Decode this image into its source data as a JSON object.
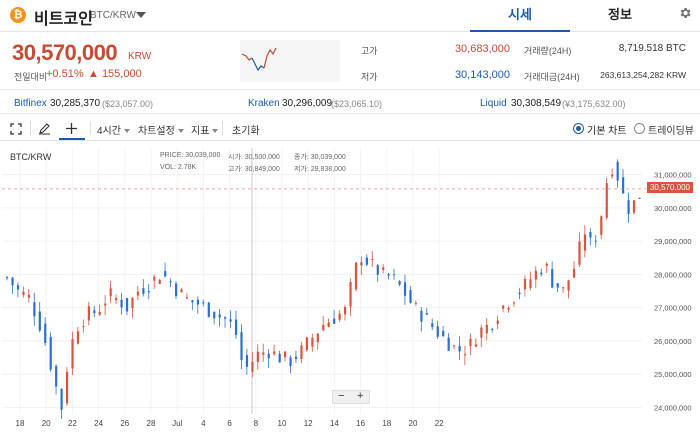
{
  "header": {
    "coin_logo": "₿",
    "coin_name": "비트코인",
    "pair": "BTC/KRW",
    "tabs": [
      "시세",
      "정보"
    ],
    "settings_icon": "gear-icon"
  },
  "price": {
    "current": "30,570,000",
    "unit": "KRW",
    "change_label": "전일대비",
    "change_pct": "+0.51%",
    "change_abs": "▲ 155,000",
    "color_up": "#c84a31",
    "color_down": "#1a5bb0"
  },
  "stats": {
    "high_label": "고가",
    "high": "30,683,000",
    "low_label": "저가",
    "low": "30,143,000",
    "volume_label": "거래량(24H)",
    "volume": "8,719.518 BTC",
    "amount_label": "거래대금(24H)",
    "amount": "263,613,254,282 KRW"
  },
  "exchanges": [
    {
      "name": "Bitfinex",
      "price": "30,285,370",
      "usd": "($23,057.00)"
    },
    {
      "name": "Kraken",
      "price": "30,296,009",
      "usd": "($23,065.10)"
    },
    {
      "name": "Liquid",
      "price": "30,308,549",
      "usd": "(¥3,175,632.00)"
    }
  ],
  "toolbar": {
    "fullscreen_icon": "expand-icon",
    "draw_icon": "pencil-icon",
    "crosshair_icon": "plus-icon",
    "interval": "4시간",
    "chart_settings": "차트설정",
    "indicators": "지표",
    "reset": "초기화",
    "mode_basic": "기본 차트",
    "mode_tv": "트레이딩뷰",
    "selected_mode": "기본 차트"
  },
  "chart_info": {
    "title": "BTC/KRW",
    "price_label": "PRICE:",
    "price_val": "30,039,000",
    "open_label": "시가:",
    "open_val": "30,500,000",
    "close_label": "종가:",
    "close_val": "30,039,000",
    "vol_label": "VOL:",
    "vol_val": "2.78K",
    "high_label": "고가:",
    "high_val": "30,849,000",
    "low_label": "저가:",
    "low_val": "29,838,000"
  },
  "chart_data": {
    "type": "candlestick",
    "title": "BTC/KRW",
    "ylim": [
      23800000,
      31800000
    ],
    "y_ticks": [
      "31,000,000",
      "30,000,000",
      "29,000,000",
      "28,000,000",
      "27,000,000",
      "26,000,000",
      "25,000,000",
      "24,000,000"
    ],
    "y_tick_values": [
      31000000,
      30000000,
      29000000,
      28000000,
      27000000,
      26000000,
      25000000,
      24000000
    ],
    "x_ticks": [
      "18",
      "20",
      "22",
      "24",
      "26",
      "28",
      "Jul",
      "4",
      "6",
      "8",
      "10",
      "12",
      "14",
      "16",
      "18",
      "20",
      "22"
    ],
    "current_price": 30570000,
    "current_label": "30,570,000",
    "trend": [
      [
        0,
        27900000
      ],
      [
        6,
        27500000
      ],
      [
        12,
        27300000
      ],
      [
        18,
        26500000
      ],
      [
        22,
        25800000
      ],
      [
        26,
        24800000
      ],
      [
        30,
        24000000
      ],
      [
        34,
        25600000
      ],
      [
        38,
        26400000
      ],
      [
        44,
        26800000
      ],
      [
        50,
        26900000
      ],
      [
        56,
        27400000
      ],
      [
        62,
        27200000
      ],
      [
        66,
        27000000
      ],
      [
        72,
        27500000
      ],
      [
        78,
        27700000
      ],
      [
        84,
        28000000
      ],
      [
        88,
        27900000
      ],
      [
        94,
        27500000
      ],
      [
        100,
        27200000
      ],
      [
        106,
        27100000
      ],
      [
        112,
        26900000
      ],
      [
        118,
        26700000
      ],
      [
        122,
        26600000
      ],
      [
        126,
        26200000
      ],
      [
        128,
        25500000
      ],
      [
        132,
        25200000
      ],
      [
        138,
        25600000
      ],
      [
        144,
        25700000
      ],
      [
        150,
        25500000
      ],
      [
        156,
        25400000
      ],
      [
        162,
        25700000
      ],
      [
        168,
        26100000
      ],
      [
        174,
        26500000
      ],
      [
        180,
        26700000
      ],
      [
        186,
        26900000
      ],
      [
        190,
        27800000
      ],
      [
        194,
        28600000
      ],
      [
        200,
        28300000
      ],
      [
        206,
        28000000
      ],
      [
        212,
        27900000
      ],
      [
        218,
        27500000
      ],
      [
        224,
        27000000
      ],
      [
        230,
        26700000
      ],
      [
        236,
        26300000
      ],
      [
        242,
        26000000
      ],
      [
        248,
        25700000
      ],
      [
        254,
        25800000
      ],
      [
        260,
        26300000
      ],
      [
        266,
        26500000
      ],
      [
        272,
        27000000
      ],
      [
        278,
        27300000
      ],
      [
        284,
        27600000
      ],
      [
        290,
        28000000
      ],
      [
        296,
        28300000
      ],
      [
        300,
        27800000
      ],
      [
        306,
        27500000
      ],
      [
        312,
        28200000
      ],
      [
        318,
        29300000
      ],
      [
        322,
        28800000
      ],
      [
        326,
        29500000
      ],
      [
        330,
        30800000
      ],
      [
        334,
        31400000
      ],
      [
        338,
        30500000
      ],
      [
        342,
        30000000
      ],
      [
        346,
        30200000
      ],
      [
        350,
        30550000
      ]
    ]
  }
}
